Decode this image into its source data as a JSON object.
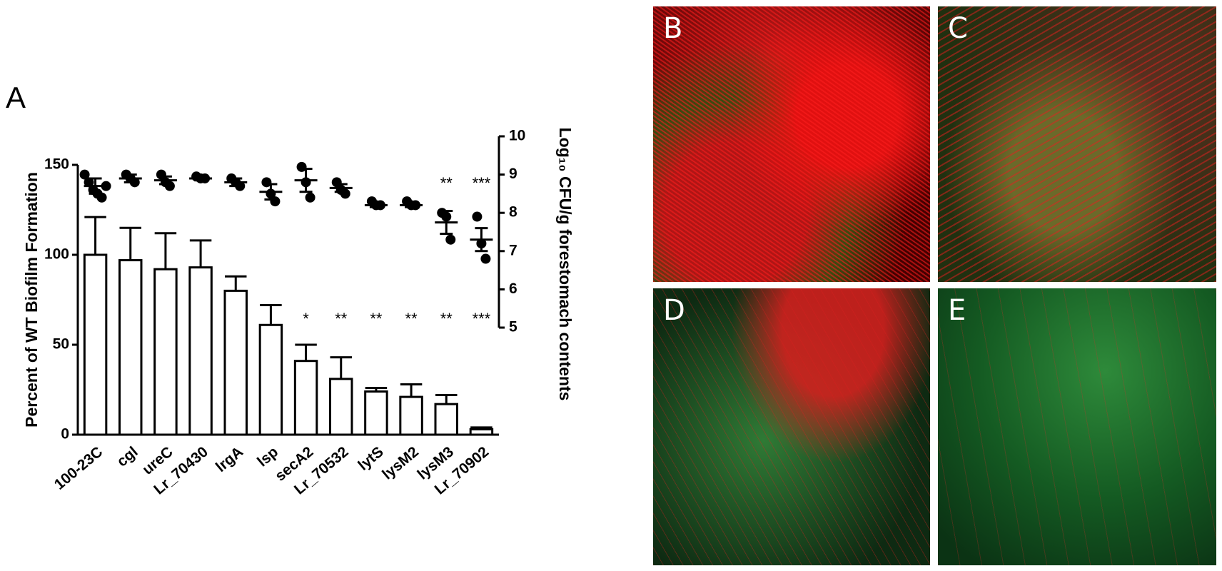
{
  "chart_data": {
    "type": "bar",
    "panel_label": "A",
    "categories": [
      "100-23C",
      "cgl",
      "ureC",
      "Lr_70430",
      "lrgA",
      "lsp",
      "secA2",
      "Lr_70532",
      "lytS",
      "lysM2",
      "lysM3",
      "Lr_70902"
    ],
    "ylabel": "Percent of WT Biofilm Formation",
    "y2label": "Log₁₀ CFU/g forestomach contents",
    "ylim": [
      0,
      150
    ],
    "yticks": [
      0,
      50,
      100,
      150
    ],
    "y2lim": [
      5,
      10
    ],
    "y2ticks": [
      5,
      6,
      7,
      8,
      9,
      10
    ],
    "bar_color": "#ffffff",
    "point_color": "#000000",
    "bars": {
      "values": [
        100,
        97,
        92,
        93,
        80,
        61,
        41,
        31,
        24,
        21,
        17,
        3
      ],
      "errors": [
        21,
        18,
        20,
        15,
        8,
        11,
        9,
        12,
        2,
        7,
        5,
        1
      ],
      "annotations": [
        null,
        null,
        null,
        null,
        null,
        null,
        "*",
        "**",
        "**",
        "**",
        "**",
        "***"
      ]
    },
    "points": {
      "axis": "y2",
      "means": [
        8.7,
        8.9,
        8.85,
        8.9,
        8.8,
        8.55,
        8.85,
        8.65,
        8.2,
        8.2,
        7.75,
        7.3
      ],
      "errors": [
        0.2,
        0.1,
        0.1,
        0.05,
        0.1,
        0.2,
        0.3,
        0.1,
        0.05,
        0.05,
        0.3,
        0.3
      ],
      "replicates": [
        [
          9.0,
          8.8,
          8.6,
          8.5,
          8.4,
          8.7
        ],
        [
          9.0,
          8.9,
          8.8
        ],
        [
          9.0,
          8.8,
          8.7
        ],
        [
          8.95,
          8.9,
          8.9
        ],
        [
          8.9,
          8.8,
          8.7
        ],
        [
          8.8,
          8.5,
          8.3
        ],
        [
          9.2,
          8.8,
          8.4
        ],
        [
          8.8,
          8.6,
          8.5
        ],
        [
          8.3,
          8.2,
          8.2
        ],
        [
          8.3,
          8.2,
          8.2
        ],
        [
          8.0,
          7.9,
          7.3
        ],
        [
          7.9,
          7.2,
          6.8
        ]
      ],
      "annotations": [
        null,
        null,
        null,
        null,
        null,
        null,
        null,
        null,
        null,
        null,
        "**",
        "***"
      ]
    }
  },
  "panels": [
    "B",
    "C",
    "D",
    "E"
  ]
}
